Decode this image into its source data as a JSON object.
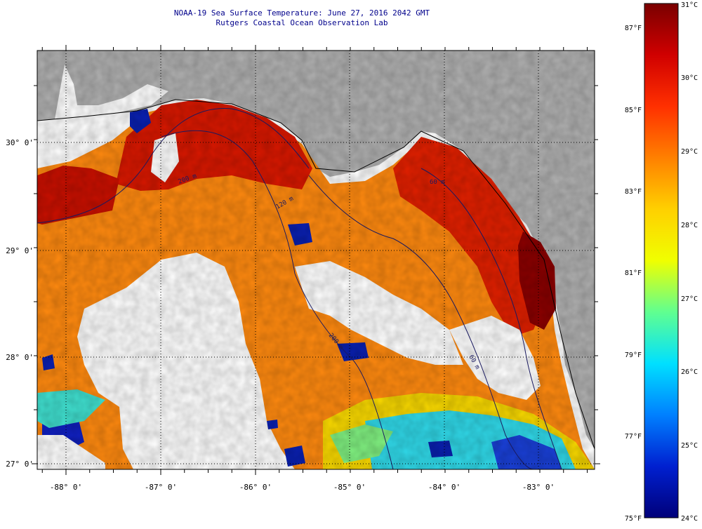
{
  "title": {
    "line1": "NOAA-19 Sea Surface Temperature:  June 27, 2016 2042 GMT",
    "line2": "Rutgers Coastal Ocean Observation Lab"
  },
  "map": {
    "lon_labels": [
      "-88° 0'",
      "-87° 0'",
      "-86° 0'",
      "-85° 0'",
      "-84° 0'",
      "-83° 0'"
    ],
    "lat_labels": [
      "30° 0'",
      "29° 0'",
      "28° 0'",
      "27° 0'"
    ],
    "contour_labels": [
      "200 m",
      "120 m",
      "60 m",
      "200 m",
      "60 m"
    ],
    "colors": {
      "land": "#b0b0b0",
      "no_data": "#ffffff",
      "frame": "#000000"
    }
  },
  "colorbar": {
    "celsius": [
      "31°C",
      "30°C",
      "29°C",
      "28°C",
      "27°C",
      "26°C",
      "25°C",
      "24°C"
    ],
    "fahrenheit": [
      "87°F",
      "85°F",
      "83°F",
      "81°F",
      "79°F",
      "77°F",
      "75°F"
    ],
    "stops": [
      "#7a0000",
      "#d00000",
      "#ff3000",
      "#ff8000",
      "#ffd000",
      "#f0ff00",
      "#60ff90",
      "#00e0ff",
      "#0080ff",
      "#0020d0",
      "#00007a"
    ]
  }
}
